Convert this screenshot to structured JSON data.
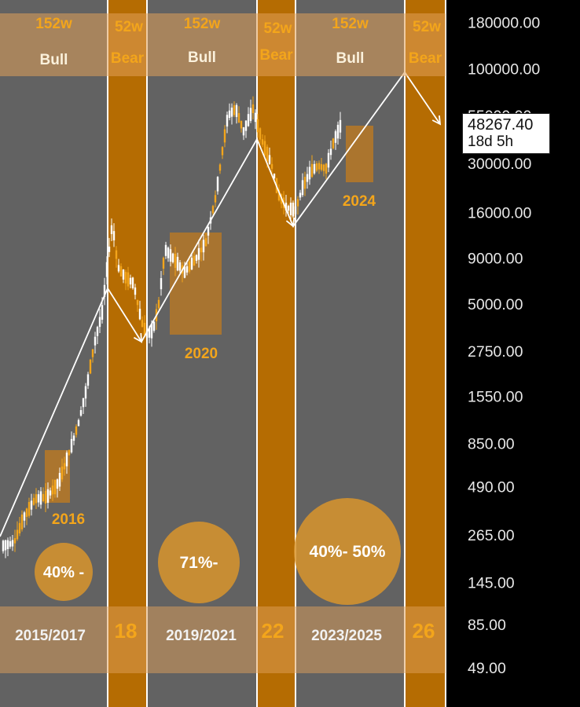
{
  "chart_data": {
    "type": "candlestick",
    "y_scale": "log",
    "y_axis_labels": [
      "180000.00",
      "100000.00",
      "55000.00",
      "30000.00",
      "16000.00",
      "9000.00",
      "5000.00",
      "2750.00",
      "1550.00",
      "850.00",
      "490.00",
      "265.00",
      "145.00",
      "85.00",
      "49.00"
    ],
    "current_price": "48267.40",
    "countdown": "18d 5h",
    "phases": [
      {
        "length": "152w",
        "label": "Bull",
        "x0": 0,
        "x1": 137
      },
      {
        "length": "52w",
        "label": "Bear",
        "x0": 137,
        "x1": 187
      },
      {
        "length": "152w",
        "label": "Bull",
        "x0": 187,
        "x1": 327
      },
      {
        "length": "52w",
        "label": "Bear",
        "x0": 327,
        "x1": 376
      },
      {
        "length": "152w",
        "label": "Bull",
        "x0": 376,
        "x1": 515
      },
      {
        "length": "52w",
        "label": "Bear",
        "x0": 515,
        "x1": 567
      }
    ],
    "cycle_years": [
      "2015/2017",
      "2019/2021",
      "2023/2025"
    ],
    "bear_years": [
      "18",
      "22",
      "26"
    ],
    "highlight_years": [
      "2016",
      "2020",
      "2024"
    ],
    "percent_labels": [
      "40% -",
      "71%-",
      "40%- 50%"
    ],
    "colors": {
      "bear_band": "#b56c02",
      "bull_bg": "#626262",
      "accent": "#f3a51b"
    }
  }
}
